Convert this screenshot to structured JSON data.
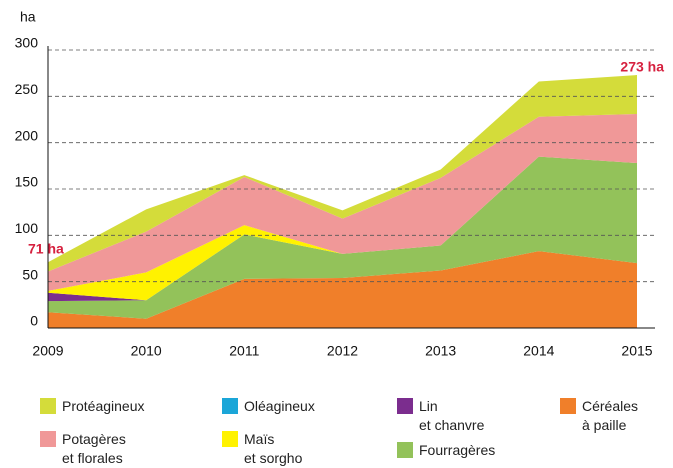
{
  "chart_data": {
    "type": "area",
    "stacked": true,
    "y_label": "ha",
    "categories": [
      "2009",
      "2010",
      "2011",
      "2012",
      "2013",
      "2014",
      "2015"
    ],
    "ylim": [
      0,
      300
    ],
    "yticks": [
      0,
      50,
      100,
      150,
      200,
      250,
      300
    ],
    "grid": true,
    "annotations": [
      {
        "text": "71 ha",
        "color": "#d6213f"
      },
      {
        "text": "273 ha",
        "color": "#d6213f"
      }
    ],
    "series": [
      {
        "name": "Céréales à paille",
        "color": "#f07f2a",
        "values": [
          17,
          10,
          53,
          54,
          62,
          83,
          70
        ]
      },
      {
        "name": "Fourragères",
        "color": "#93c25a",
        "values": [
          12,
          20,
          48,
          26,
          27,
          102,
          108
        ]
      },
      {
        "name": "Lin et chanvre",
        "color": "#7b2d8e",
        "values": [
          9,
          0,
          0,
          0,
          0,
          0,
          0
        ]
      },
      {
        "name": "Oléagineux",
        "color": "#1ba6d8",
        "values": [
          0,
          0,
          0,
          0,
          0,
          0,
          0
        ]
      },
      {
        "name": "Maïs et sorgho",
        "color": "#fff200",
        "values": [
          2,
          30,
          10,
          0,
          0,
          0,
          0
        ]
      },
      {
        "name": "Potagères et florales",
        "color": "#f09898",
        "values": [
          21,
          44,
          52,
          38,
          73,
          43,
          53
        ]
      },
      {
        "name": "Protéagineux",
        "color": "#d4dc3a",
        "values": [
          10,
          24,
          2,
          9,
          9,
          38,
          42
        ]
      }
    ]
  }
}
